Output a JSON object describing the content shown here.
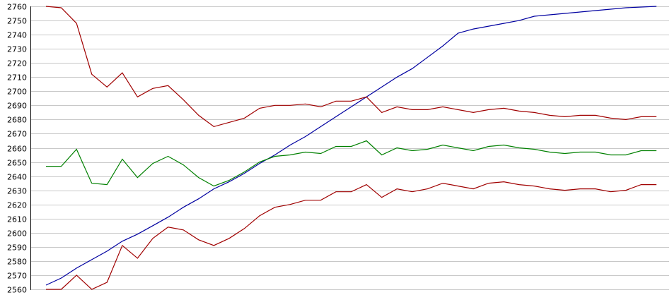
{
  "chart_data": {
    "type": "line",
    "title": "",
    "xlabel": "",
    "ylabel": "",
    "ylim": [
      2560,
      2760
    ],
    "yticks": [
      2560,
      2570,
      2580,
      2590,
      2600,
      2610,
      2620,
      2630,
      2640,
      2650,
      2660,
      2670,
      2680,
      2690,
      2700,
      2710,
      2720,
      2730,
      2740,
      2750,
      2760
    ],
    "x": [
      0,
      1,
      2,
      3,
      4,
      5,
      6,
      7,
      8,
      9,
      10,
      11,
      12,
      13,
      14,
      15,
      16,
      17,
      18,
      19,
      20,
      21,
      22,
      23,
      24,
      25,
      26,
      27,
      28,
      29,
      30,
      31,
      32,
      33,
      34,
      35,
      36,
      37,
      38,
      39,
      40
    ],
    "grid": true,
    "series": [
      {
        "color": "#0000a0",
        "values": [
          2563,
          2568,
          2575,
          2581,
          2587,
          2594,
          2599,
          2605,
          2611,
          2618,
          2624,
          2631,
          2636,
          2642,
          2649,
          2655,
          2662,
          2668,
          2675,
          2682,
          2689,
          2696,
          2703,
          2710,
          2716,
          2724,
          2732,
          2741,
          2744,
          2746,
          2748,
          2750,
          2753,
          2754,
          2755,
          2756,
          2757,
          2758,
          2759,
          2759.5,
          2760
        ]
      },
      {
        "color": "#a00000",
        "values": [
          2760,
          2759,
          2748,
          2712,
          2703,
          2713,
          2696,
          2702,
          2704,
          2694,
          2683,
          2675,
          2678,
          2681,
          2688,
          2690,
          2690,
          2691,
          2689,
          2693,
          2693,
          2696,
          2685,
          2689,
          2687,
          2687,
          2689,
          2687,
          2685,
          2687,
          2688,
          2686,
          2685,
          2683,
          2682,
          2683,
          2683,
          2681,
          2680,
          2682,
          2682
        ]
      },
      {
        "color": "#008000",
        "values": [
          2647,
          2647,
          2659,
          2635,
          2634,
          2652,
          2639,
          2649,
          2654,
          2648,
          2639,
          2633,
          2637,
          2643,
          2650,
          2654,
          2655,
          2657,
          2656,
          2661,
          2661,
          2665,
          2655,
          2660,
          2658,
          2659,
          2662,
          2660,
          2658,
          2661,
          2662,
          2660,
          2659,
          2657,
          2656,
          2657,
          2657,
          2655,
          2655,
          2658,
          2658
        ]
      },
      {
        "color": "#a00000",
        "values": [
          2560,
          2560,
          2570,
          2560,
          2565,
          2591,
          2582,
          2596,
          2604,
          2602,
          2595,
          2591,
          2596,
          2603,
          2612,
          2618,
          2620,
          2623,
          2623,
          2629,
          2629,
          2634,
          2625,
          2631,
          2629,
          2631,
          2635,
          2633,
          2631,
          2635,
          2636,
          2634,
          2633,
          2631,
          2630,
          2631,
          2631,
          2629,
          2630,
          2634,
          2634
        ]
      }
    ]
  }
}
